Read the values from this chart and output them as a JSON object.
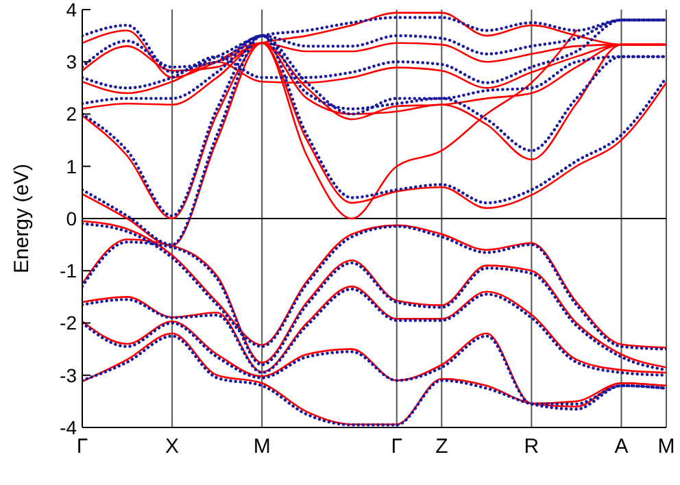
{
  "chart_data": {
    "type": "line",
    "ylabel": "Energy (eV)",
    "categories": [
      "Γ",
      null,
      "X",
      null,
      "M",
      null,
      null,
      "Γ",
      "Z",
      null,
      "R",
      null,
      "A",
      "M"
    ],
    "ylim": [
      -4,
      4
    ],
    "yticks": [
      -4,
      -3,
      -2,
      -1,
      0,
      1,
      2,
      3,
      4
    ],
    "grid": "x",
    "marker": "none",
    "ref_lines": [
      {
        "axis": "y",
        "value": 0,
        "color": "#000000"
      }
    ],
    "series": [
      {
        "color": "#ff0000",
        "line_style": "solid",
        "values": [
          -0.05,
          -0.2,
          -0.7,
          -1.6,
          -2.42,
          -1.2,
          -0.3,
          -0.13,
          -0.3,
          -0.6,
          -0.47,
          -1.6,
          -2.41,
          -2.47
        ]
      },
      {
        "color": "#ff0000",
        "line_style": "solid",
        "values": [
          -1.25,
          -0.4,
          -0.52,
          -1.1,
          -2.76,
          -1.6,
          -0.8,
          -1.57,
          -1.66,
          -0.9,
          -1.0,
          -2.0,
          -2.6,
          -2.85
        ]
      },
      {
        "color": "#ff0000",
        "line_style": "solid",
        "values": [
          -1.6,
          -1.5,
          -1.89,
          -1.8,
          -2.94,
          -2.0,
          -1.3,
          -1.92,
          -1.92,
          -1.4,
          -1.84,
          -2.7,
          -2.9,
          -2.95
        ]
      },
      {
        "color": "#ff0000",
        "line_style": "solid",
        "values": [
          -1.97,
          -2.4,
          -1.97,
          -2.6,
          -3.02,
          -2.6,
          -2.5,
          -3.1,
          -2.8,
          -2.2,
          -3.54,
          -3.5,
          -3.15,
          -3.2
        ]
      },
      {
        "color": "#ff0000",
        "line_style": "solid",
        "values": [
          -3.12,
          -2.7,
          -2.2,
          -3.0,
          -3.15,
          -3.7,
          -3.94,
          -3.94,
          -3.07,
          -3.2,
          -3.54,
          -3.6,
          -3.15,
          -3.2
        ]
      },
      {
        "color": "#ff0000",
        "line_style": "solid",
        "values": [
          0.47,
          0.0,
          -0.52,
          1.5,
          3.36,
          1.5,
          0.3,
          0.52,
          0.6,
          0.2,
          0.45,
          1.0,
          1.5,
          2.6
        ]
      },
      {
        "color": "#ff0000",
        "line_style": "solid",
        "values": [
          1.97,
          1.2,
          0.0,
          2.0,
          3.36,
          2.3,
          2.0,
          2.05,
          2.18,
          1.8,
          1.13,
          2.2,
          3.33,
          3.33
        ]
      },
      {
        "color": "#ff0000",
        "line_style": "solid",
        "values": [
          2.1,
          2.2,
          2.18,
          2.7,
          3.36,
          2.5,
          1.9,
          2.15,
          2.18,
          2.3,
          2.4,
          2.9,
          3.33,
          3.33
        ]
      },
      {
        "color": "#ff0000",
        "line_style": "solid",
        "values": [
          2.62,
          2.4,
          2.62,
          3.0,
          2.62,
          2.6,
          2.7,
          2.89,
          2.83,
          2.5,
          2.8,
          3.1,
          3.33,
          3.33
        ]
      },
      {
        "color": "#ff0000",
        "line_style": "solid",
        "values": [
          2.83,
          3.3,
          2.83,
          2.9,
          3.36,
          3.2,
          3.2,
          3.36,
          3.33,
          3.0,
          3.15,
          3.3,
          3.33,
          3.33
        ]
      },
      {
        "color": "#ff0000",
        "line_style": "solid",
        "values": [
          3.36,
          3.6,
          2.7,
          3.0,
          3.36,
          3.5,
          3.7,
          3.94,
          3.94,
          3.5,
          3.7,
          3.5,
          3.33,
          3.33
        ]
      },
      {
        "color": "#ff0000",
        "line_style": "solid",
        "values": [
          null,
          null,
          null,
          3.0,
          3.36,
          1.2,
          0.0,
          1.0,
          1.3,
          2.0,
          2.6,
          3.6,
          null,
          null
        ]
      },
      {
        "color": "#1a1a9c",
        "line_style": "dotted",
        "values": [
          -0.1,
          -0.25,
          -0.75,
          -1.65,
          -2.45,
          -1.25,
          -0.35,
          -0.15,
          -0.35,
          -0.65,
          -0.5,
          -1.65,
          -2.45,
          -2.5
        ]
      },
      {
        "color": "#1a1a9c",
        "line_style": "dotted",
        "values": [
          -1.3,
          -0.45,
          -0.55,
          -1.15,
          -2.8,
          -1.65,
          -0.85,
          -1.6,
          -1.7,
          -0.95,
          -1.05,
          -2.05,
          -2.65,
          -2.9
        ]
      },
      {
        "color": "#1a1a9c",
        "line_style": "dotted",
        "values": [
          -1.65,
          -1.55,
          -1.9,
          -1.85,
          -2.95,
          -2.05,
          -1.35,
          -1.95,
          -1.95,
          -1.45,
          -1.9,
          -2.75,
          -2.95,
          -3.0
        ]
      },
      {
        "color": "#1a1a9c",
        "line_style": "dotted",
        "values": [
          -2.0,
          -2.45,
          -2.0,
          -2.65,
          -3.05,
          -2.65,
          -2.55,
          -3.1,
          -2.85,
          -2.25,
          -3.55,
          -3.55,
          -3.2,
          -3.25
        ]
      },
      {
        "color": "#1a1a9c",
        "line_style": "dotted",
        "values": [
          -3.1,
          -2.75,
          -2.25,
          -3.05,
          -3.2,
          -3.75,
          -3.95,
          -3.95,
          -3.1,
          -3.25,
          -3.55,
          -3.65,
          -3.2,
          -3.25
        ]
      },
      {
        "color": "#1a1a9c",
        "line_style": "dotted",
        "values": [
          0.55,
          0.05,
          -0.5,
          1.6,
          3.5,
          1.6,
          0.4,
          0.55,
          0.65,
          0.3,
          0.55,
          1.1,
          1.6,
          2.7
        ]
      },
      {
        "color": "#1a1a9c",
        "line_style": "dotted",
        "values": [
          2.0,
          1.3,
          0.05,
          2.1,
          3.5,
          2.4,
          2.1,
          2.2,
          2.3,
          1.9,
          1.3,
          2.3,
          3.1,
          3.1
        ]
      },
      {
        "color": "#1a1a9c",
        "line_style": "dotted",
        "values": [
          2.2,
          2.3,
          2.3,
          2.8,
          3.5,
          2.6,
          2.0,
          2.3,
          2.3,
          2.45,
          2.5,
          3.0,
          3.1,
          3.1
        ]
      },
      {
        "color": "#1a1a9c",
        "line_style": "dotted",
        "values": [
          2.7,
          2.5,
          2.7,
          3.1,
          2.7,
          2.7,
          2.8,
          3.0,
          2.95,
          2.6,
          2.9,
          3.2,
          3.8,
          3.8
        ]
      },
      {
        "color": "#1a1a9c",
        "line_style": "dotted",
        "values": [
          2.9,
          3.4,
          2.9,
          3.0,
          3.5,
          3.3,
          3.3,
          3.5,
          3.45,
          3.15,
          3.3,
          3.45,
          3.8,
          3.8
        ]
      },
      {
        "color": "#1a1a9c",
        "line_style": "dotted",
        "values": [
          3.5,
          3.7,
          2.8,
          3.1,
          3.5,
          3.6,
          3.75,
          3.85,
          3.85,
          3.6,
          3.75,
          3.6,
          3.8,
          3.8
        ]
      }
    ]
  }
}
